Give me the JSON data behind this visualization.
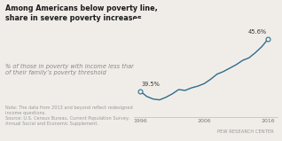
{
  "title": "Among Americans below poverty line,\nshare in severe poverty increases",
  "subtitle": "% of those in poverty with income less than half\nof their family’s poverty threshold",
  "note": "Note: The data from 2013 and beyond reflect redesigned\nincome questions.\nSource: U.S. Census Bureau, Current Population Survey,\nAnnual Social and Economic Supplement.",
  "branding": "PEW RESEARCH CENTER",
  "years": [
    1996,
    1997,
    1998,
    1999,
    2000,
    2001,
    2002,
    2003,
    2004,
    2005,
    2006,
    2007,
    2008,
    2009,
    2010,
    2011,
    2012,
    2013,
    2014,
    2015,
    2016
  ],
  "values": [
    39.5,
    38.9,
    38.6,
    38.5,
    38.8,
    39.2,
    39.7,
    39.6,
    39.9,
    40.1,
    40.4,
    40.9,
    41.5,
    41.8,
    42.2,
    42.6,
    43.1,
    43.4,
    44.0,
    44.7,
    45.6
  ],
  "line_color": "#2e6d8e",
  "bg_color": "#f0ede8",
  "chart_bg": "#f0ede8",
  "start_label": "39.5%",
  "end_label": "45.6%",
  "xticks": [
    1996,
    2006,
    2016
  ],
  "xlim": [
    1995.0,
    2017.5
  ],
  "ylim": [
    36.5,
    48.0
  ]
}
